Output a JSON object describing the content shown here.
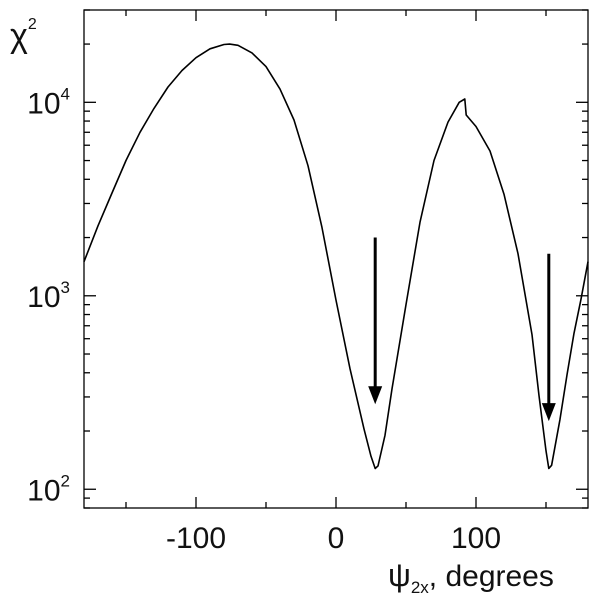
{
  "chart_data": {
    "type": "line",
    "ylabel": "χ²",
    "ylabel_base": "χ",
    "ylabel_sup": "2",
    "xlabel": "ψ2x, degrees",
    "xlabel_main": "ψ",
    "xlabel_sub": "2x",
    "xlabel_rest": ", degrees",
    "xlim": [
      -180,
      180
    ],
    "ylim": [
      80,
      30000
    ],
    "y_scale": "log",
    "grid": false,
    "x_ticks": [
      {
        "value": -100,
        "label": "-100"
      },
      {
        "value": 0,
        "label": "0"
      },
      {
        "value": 100,
        "label": "100"
      }
    ],
    "y_ticks": [
      {
        "value": 100,
        "label_base": "10",
        "label_exp": "2"
      },
      {
        "value": 1000,
        "label_base": "10",
        "label_exp": "3"
      },
      {
        "value": 10000,
        "label_base": "10",
        "label_exp": "4"
      }
    ],
    "series": [
      {
        "line_color": "#000000",
        "points": [
          [
            -180,
            1500
          ],
          [
            -170,
            2300
          ],
          [
            -160,
            3400
          ],
          [
            -150,
            5000
          ],
          [
            -140,
            7000
          ],
          [
            -130,
            9300
          ],
          [
            -120,
            12000
          ],
          [
            -110,
            14600
          ],
          [
            -100,
            17000
          ],
          [
            -90,
            18900
          ],
          [
            -80,
            19900
          ],
          [
            -76,
            20000
          ],
          [
            -70,
            19700
          ],
          [
            -60,
            18000
          ],
          [
            -50,
            15300
          ],
          [
            -40,
            11700
          ],
          [
            -30,
            8100
          ],
          [
            -20,
            4700
          ],
          [
            -10,
            2250
          ],
          [
            0,
            950
          ],
          [
            10,
            420
          ],
          [
            20,
            205
          ],
          [
            25,
            148
          ],
          [
            28,
            128
          ],
          [
            30,
            132
          ],
          [
            35,
            190
          ],
          [
            40,
            330
          ],
          [
            50,
            900
          ],
          [
            60,
            2400
          ],
          [
            70,
            5000
          ],
          [
            80,
            7900
          ],
          [
            88,
            10000
          ],
          [
            92,
            10400
          ],
          [
            93,
            8600
          ],
          [
            100,
            7500
          ],
          [
            110,
            5600
          ],
          [
            120,
            3350
          ],
          [
            130,
            1650
          ],
          [
            140,
            630
          ],
          [
            145,
            305
          ],
          [
            150,
            158
          ],
          [
            152,
            128
          ],
          [
            154,
            133
          ],
          [
            160,
            230
          ],
          [
            165,
            390
          ],
          [
            170,
            640
          ],
          [
            175,
            960
          ],
          [
            180,
            1500
          ]
        ]
      }
    ],
    "annotations": [
      {
        "type": "arrow",
        "x": 28,
        "y_start": 2000,
        "y_end": 275
      },
      {
        "type": "arrow",
        "x": 152,
        "y_start": 1650,
        "y_end": 225
      }
    ]
  }
}
